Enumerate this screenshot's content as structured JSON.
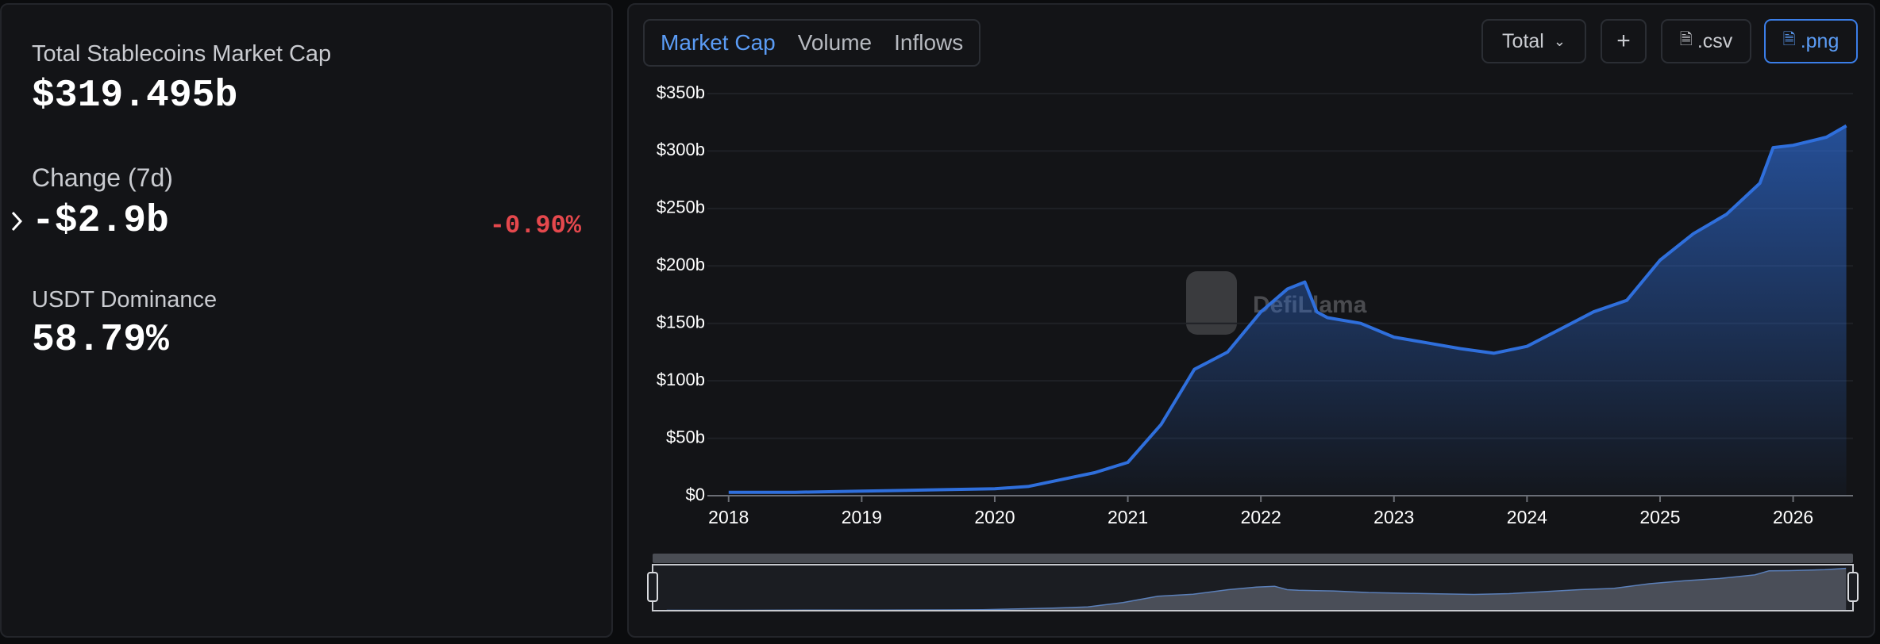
{
  "stats": {
    "items": [
      {
        "label": "Total Stablecoins Market Cap",
        "value": "$319.495b"
      },
      {
        "label": "Change (7d)",
        "value": "-$2.9b",
        "change": "-0.90%"
      },
      {
        "label": "USDT Dominance",
        "value": "58.79%"
      }
    ]
  },
  "tabs": [
    "Market Cap",
    "Volume",
    "Inflows"
  ],
  "buttons": {
    "select": "Total",
    "add": "+",
    "csv": ".csv",
    "png": ".png"
  },
  "watermark": "DefiLlama",
  "chart_data": {
    "type": "area",
    "x": [
      2018.0,
      2018.5,
      2019.0,
      2019.5,
      2020.0,
      2020.25,
      2020.5,
      2020.75,
      2021.0,
      2021.25,
      2021.5,
      2021.75,
      2022.0,
      2022.2,
      2022.33,
      2022.42,
      2022.5,
      2022.75,
      2023.0,
      2023.25,
      2023.5,
      2023.75,
      2024.0,
      2024.25,
      2024.5,
      2024.75,
      2025.0,
      2025.25,
      2025.5,
      2025.75,
      2025.85,
      2026.0,
      2026.25,
      2026.4
    ],
    "series": [
      {
        "name": "Market Cap",
        "color": "#2f6fdc",
        "values": [
          3,
          3,
          4,
          5,
          6,
          8,
          14,
          20,
          29,
          62,
          110,
          125,
          160,
          180,
          186,
          160,
          155,
          150,
          138,
          133,
          128,
          124,
          130,
          145,
          160,
          170,
          205,
          228,
          245,
          272,
          303,
          305,
          312,
          322
        ]
      }
    ],
    "xlim": [
      2017.9,
      2026.45
    ],
    "xticks": [
      2018,
      2019,
      2020,
      2021,
      2022,
      2023,
      2024,
      2025,
      2026
    ],
    "ylim": [
      0,
      350
    ],
    "yticks": [
      {
        "value": 0,
        "label": "$0"
      },
      {
        "value": 50,
        "label": "$50b"
      },
      {
        "value": 100,
        "label": "$100b"
      },
      {
        "value": 150,
        "label": "$150b"
      },
      {
        "value": 200,
        "label": "$200b"
      },
      {
        "value": 250,
        "label": "$250b"
      },
      {
        "value": 300,
        "label": "$300b"
      },
      {
        "value": 350,
        "label": "$350b"
      }
    ],
    "grid": true
  }
}
